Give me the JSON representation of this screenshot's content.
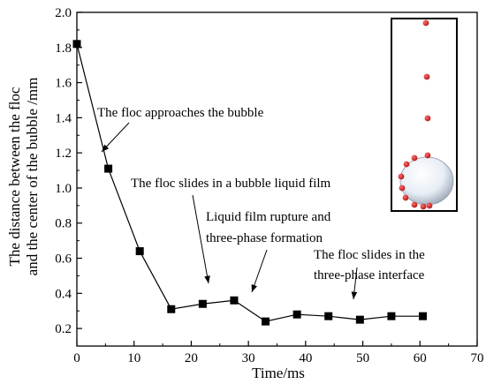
{
  "chart_data": {
    "type": "line",
    "xlabel": "Time/ms",
    "ylabel_lines": [
      "The distance between the floc",
      "and the center of the bubble /mm"
    ],
    "xlim": [
      0,
      70
    ],
    "ylim": [
      0.1,
      2.0
    ],
    "x_ticks": [
      "0",
      "10",
      "20",
      "30",
      "40",
      "50",
      "60",
      "70"
    ],
    "y_ticks": [
      "0.2",
      "0.4",
      "0.6",
      "0.8",
      "1.0",
      "1.2",
      "1.4",
      "1.6",
      "1.8",
      "2.0"
    ],
    "grid": false,
    "legend": "none",
    "series": [
      {
        "marker": "square",
        "color": "#000000",
        "points": [
          [
            0,
            1.82
          ],
          [
            5.5,
            1.11
          ],
          [
            11,
            0.64
          ],
          [
            16.5,
            0.31
          ],
          [
            22,
            0.34
          ],
          [
            27.5,
            0.36
          ],
          [
            33,
            0.24
          ],
          [
            38.5,
            0.28
          ],
          [
            44,
            0.27
          ],
          [
            49.5,
            0.25
          ],
          [
            55,
            0.27
          ],
          [
            60.5,
            0.27
          ]
        ]
      }
    ],
    "annotations": [
      {
        "lines": [
          "The floc approaches the bubble"
        ]
      },
      {
        "lines": [
          "The floc slides in a bubble liquid film"
        ]
      },
      {
        "lines": [
          "Liquid film rupture and",
          "three-phase formation"
        ]
      },
      {
        "lines": [
          "The floc slides in the",
          "three-phase interface"
        ]
      }
    ],
    "inset": {
      "bubble_color": "#e8eef6",
      "floc_color": "#b01818"
    }
  }
}
